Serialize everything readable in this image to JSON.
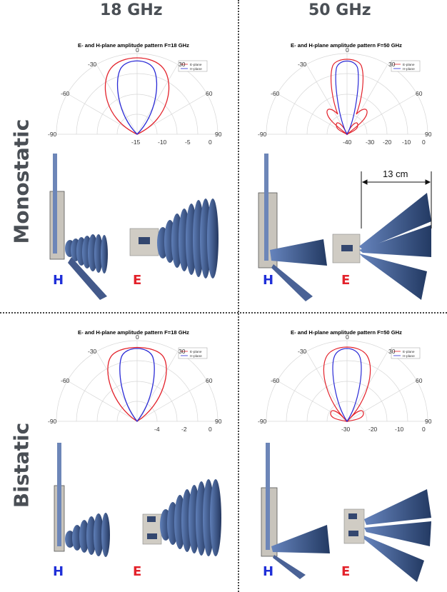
{
  "columns": {
    "left": "18 GHz",
    "right": "50 GHz"
  },
  "rows": {
    "top": "Monostatic",
    "bottom": "Bistatic"
  },
  "colors": {
    "e_plane": "#e3222b",
    "h_plane": "#2a2ad6",
    "E_label": "#e3222b",
    "H_label": "#1f2fd8",
    "lobe": "#3e5a8e"
  },
  "plots": {
    "mono18": {
      "title": "E- and H-plane amplitude pattern F=18 GHz",
      "legend_e": "E-plane",
      "legend_h": "H-plane",
      "angles": [
        "-90",
        "-60",
        "-30",
        "0",
        "30",
        "60",
        "90"
      ],
      "radial": [
        "-15",
        "-10",
        "-5",
        "0"
      ]
    },
    "mono50": {
      "title": "E- and H-plane amplitude pattern F=50 GHz",
      "legend_e": "E-plane",
      "legend_h": "H-plane",
      "angles": [
        "-90",
        "-60",
        "-30",
        "0",
        "30",
        "60",
        "90"
      ],
      "radial": [
        "-40",
        "-30",
        "-20",
        "-10",
        "0"
      ]
    },
    "bi18": {
      "title": "E- and H-plane amplitude pattern F=18 GHz",
      "legend_e": "E-plane",
      "legend_h": "H-plane",
      "angles": [
        "-90",
        "-60",
        "-30",
        "0",
        "30",
        "60",
        "90"
      ],
      "radial": [
        "-4",
        "-2",
        "0"
      ]
    },
    "bi50": {
      "title": "E- and H-plane amplitude pattern F=50 GHz",
      "legend_e": "E-plane",
      "legend_h": "H-plane",
      "angles": [
        "-90",
        "-60",
        "-30",
        "0",
        "30",
        "60",
        "90"
      ],
      "radial": [
        "-30",
        "-20",
        "-10",
        "0"
      ]
    }
  },
  "planes": {
    "h": "H",
    "e": "E"
  },
  "dimension": "13 cm"
}
